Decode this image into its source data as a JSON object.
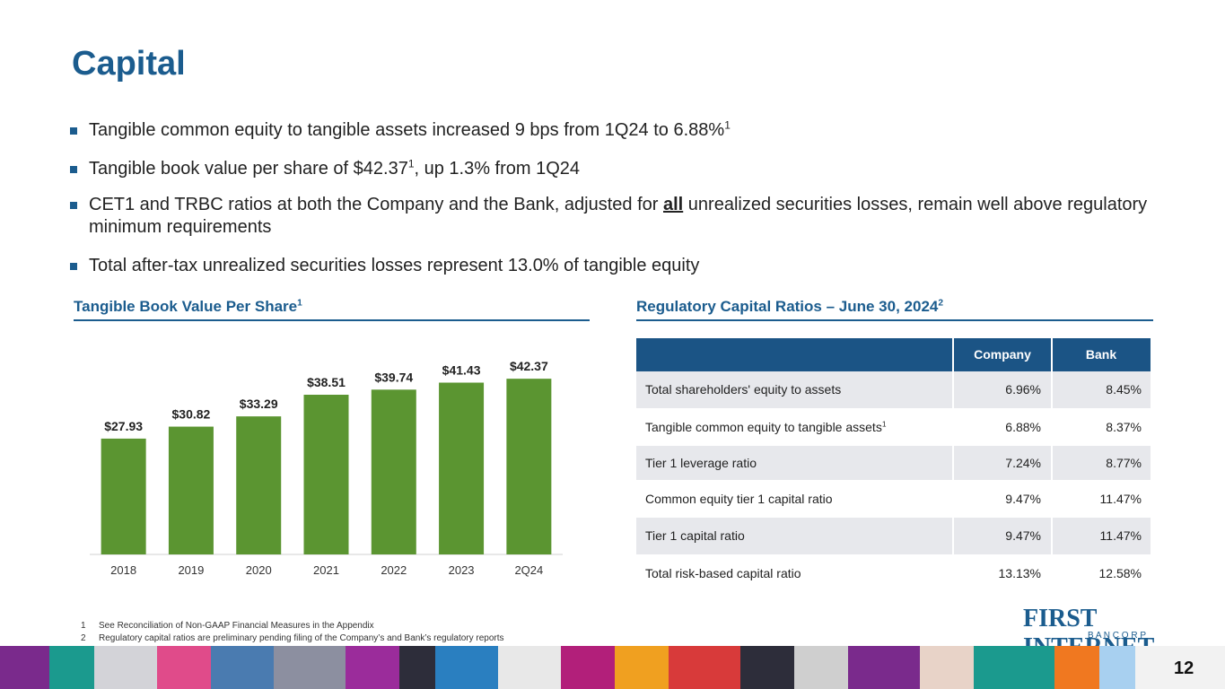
{
  "title": "Capital",
  "bullets": [
    [
      "Tangible common equity to tangible assets increased 9 bps from 1Q24 to 6.88%",
      "1"
    ],
    [
      "Tangible book value per share of $42.37",
      "1",
      ", up 1.3% from 1Q24"
    ],
    [
      "CET1 and TRBC ratios at both the Company and the Bank, adjusted for ",
      "all",
      " unrealized securities losses, remain well above regulatory minimum requirements"
    ],
    [
      "Total after-tax unrealized securities losses represent 13.0% of tangible equity"
    ]
  ],
  "chart_data": {
    "type": "bar",
    "title": "Tangible Book Value Per Share",
    "title_sup": "1",
    "categories": [
      "2018",
      "2019",
      "2020",
      "2021",
      "2022",
      "2023",
      "2Q24"
    ],
    "values": [
      27.93,
      30.82,
      33.29,
      38.51,
      39.74,
      41.43,
      42.37
    ],
    "value_labels": [
      "$27.93",
      "$30.82",
      "$33.29",
      "$38.51",
      "$39.74",
      "$41.43",
      "$42.37"
    ],
    "color": "#5b9531",
    "ylim": [
      0,
      45
    ]
  },
  "table": {
    "title": "Regulatory Capital Ratios – June 30, 2024",
    "title_sup": "2",
    "columns": [
      "Company",
      "Bank"
    ],
    "rows": [
      {
        "label": "Total shareholders' equity to assets",
        "company": "6.96%",
        "bank": "8.45%"
      },
      {
        "label": "Tangible common equity to tangible assets",
        "label_sup": "1",
        "company": "6.88%",
        "bank": "8.37%"
      },
      {
        "label": "Tier 1 leverage ratio",
        "company": "7.24%",
        "bank": "8.77%"
      },
      {
        "label": "Common equity tier 1 capital ratio",
        "company": "9.47%",
        "bank": "11.47%"
      },
      {
        "label": "Tier 1 capital ratio",
        "company": "9.47%",
        "bank": "11.47%"
      },
      {
        "label": "Total risk-based capital ratio",
        "company": "13.13%",
        "bank": "12.58%"
      }
    ]
  },
  "footnotes": [
    {
      "number": "1",
      "text": "See Reconciliation of Non-GAAP Financial Measures in the Appendix"
    },
    {
      "number": "2",
      "text": "Regulatory capital ratios are preliminary pending filing of the Company’s and Bank’s regulatory reports"
    }
  ],
  "logo": {
    "name": "FIRST INTERNET",
    "sub": "B A N C O R P"
  },
  "page_number": "12"
}
